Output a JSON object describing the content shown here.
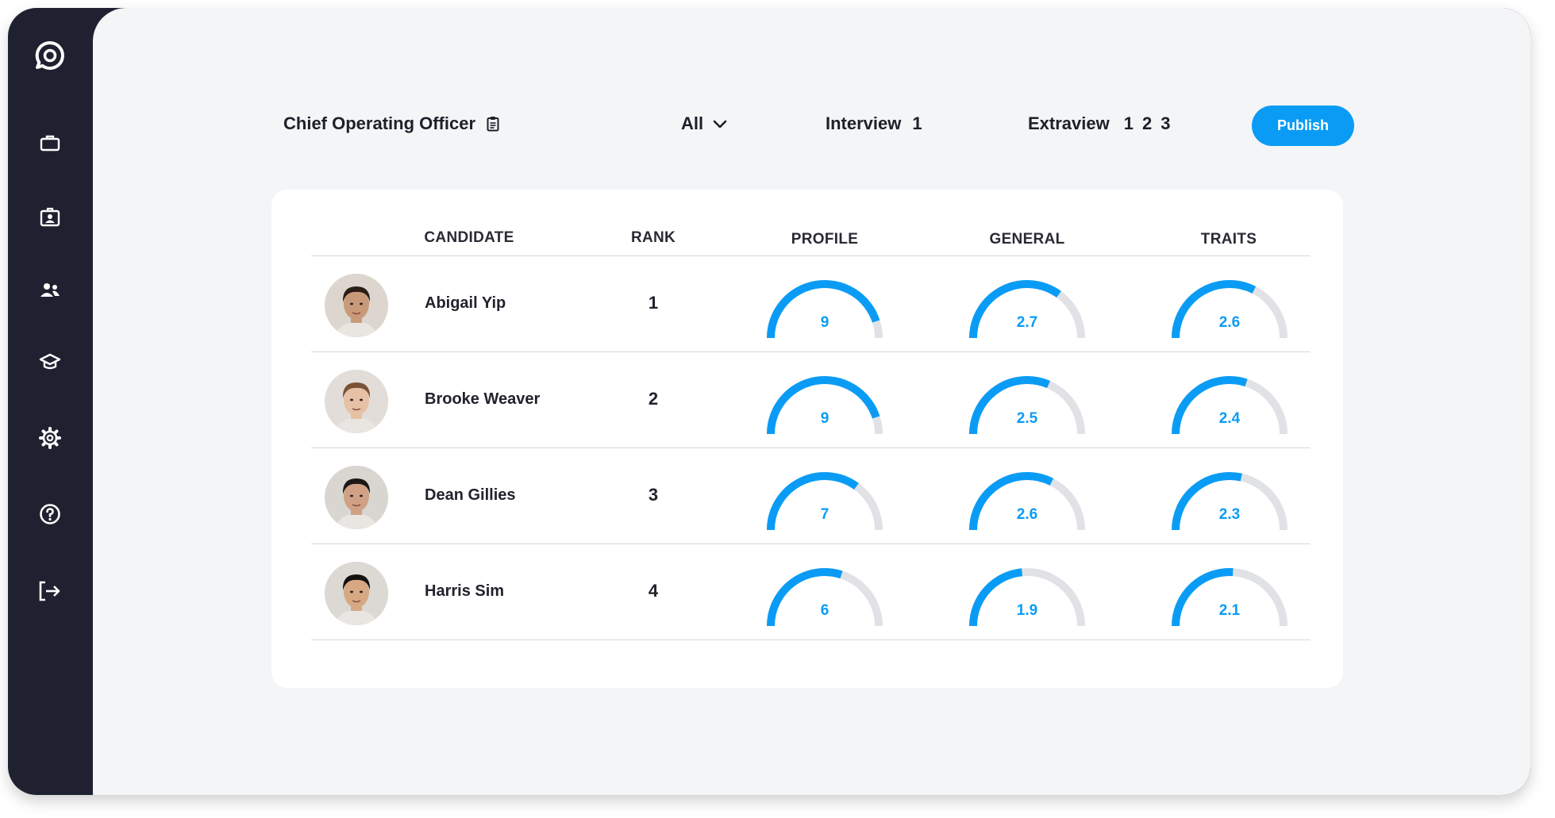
{
  "colors": {
    "accent": "#0a9cf5",
    "track": "#e1e2e6",
    "sidebar": "#1f2130",
    "canvas": "#f4f5f7"
  },
  "sidebar": {
    "logo_icon": "chat-bubble-icon",
    "items": [
      {
        "icon": "briefcase-icon"
      },
      {
        "icon": "id-badge-icon"
      },
      {
        "icon": "users-icon"
      },
      {
        "icon": "graduation-cap-icon"
      },
      {
        "icon": "gear-icon"
      },
      {
        "icon": "help-circle-icon"
      },
      {
        "icon": "logout-icon"
      }
    ]
  },
  "header": {
    "job_title": "Chief Operating Officer",
    "filter_all": "All",
    "interview_label": "Interview",
    "interview_numbers": [
      "1"
    ],
    "extraview_label": "Extraview",
    "extraview_numbers": [
      "1",
      "2",
      "3"
    ],
    "publish_label": "Publish"
  },
  "table": {
    "columns": {
      "candidate": "CANDIDATE",
      "rank": "RANK",
      "profile": "PROFILE",
      "general": "GENERAL",
      "traits": "TRAITS"
    },
    "rows": [
      {
        "name": "Abigail Yip",
        "rank": "1",
        "profile": {
          "label": "9",
          "fraction": 0.9
        },
        "general": {
          "label": "2.7",
          "fraction": 0.7
        },
        "traits": {
          "label": "2.6",
          "fraction": 0.65
        },
        "avatar": {
          "skin": "#c99a7a",
          "hair": "#2a1e18",
          "bg": "#ddd6cf"
        }
      },
      {
        "name": "Brooke Weaver",
        "rank": "2",
        "profile": {
          "label": "9",
          "fraction": 0.9
        },
        "general": {
          "label": "2.5",
          "fraction": 0.63
        },
        "traits": {
          "label": "2.4",
          "fraction": 0.6
        },
        "avatar": {
          "skin": "#e6c1a6",
          "hair": "#7a5236",
          "bg": "#e2ddd8"
        }
      },
      {
        "name": "Dean Gillies",
        "rank": "3",
        "profile": {
          "label": "7",
          "fraction": 0.7
        },
        "general": {
          "label": "2.6",
          "fraction": 0.65
        },
        "traits": {
          "label": "2.3",
          "fraction": 0.57
        },
        "avatar": {
          "skin": "#d0a184",
          "hair": "#1e1815",
          "bg": "#d9d6d2"
        }
      },
      {
        "name": "Harris Sim",
        "rank": "4",
        "profile": {
          "label": "6",
          "fraction": 0.6
        },
        "general": {
          "label": "1.9",
          "fraction": 0.47
        },
        "traits": {
          "label": "2.1",
          "fraction": 0.52
        },
        "avatar": {
          "skin": "#d6a884",
          "hair": "#141210",
          "bg": "#dcd9d5"
        }
      }
    ]
  }
}
